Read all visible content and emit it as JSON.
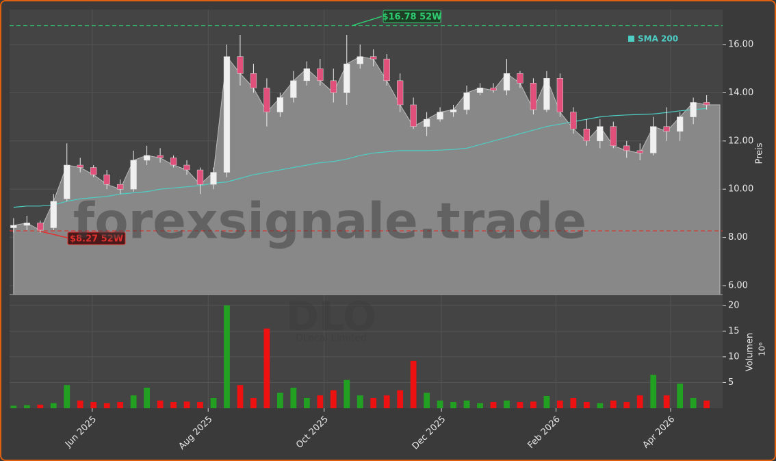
{
  "chart_data": {
    "type": "candlestick",
    "watermark": "forexsignale.trade",
    "ticker": "DLO",
    "company": "DLocal Limited",
    "categories": [
      null,
      null,
      null,
      null,
      null,
      null,
      null,
      null,
      null,
      null,
      null,
      null,
      null,
      null,
      null,
      null,
      null,
      null,
      null,
      null,
      null,
      null,
      null,
      null,
      null,
      null,
      null,
      null,
      null,
      null,
      null,
      null,
      null,
      null,
      null,
      null,
      null,
      null,
      null,
      null,
      null,
      null,
      null,
      null,
      null,
      null,
      null,
      null,
      null,
      null,
      null,
      null,
      null
    ],
    "open": [
      8.4,
      8.5,
      8.6,
      8.4,
      9.6,
      11.0,
      10.9,
      10.6,
      10.2,
      10.0,
      11.2,
      11.4,
      11.3,
      11.0,
      10.8,
      10.2,
      10.7,
      15.5,
      14.8,
      14.2,
      13.2,
      13.8,
      14.5,
      15.0,
      14.5,
      14.0,
      15.2,
      15.5,
      15.4,
      14.5,
      13.5,
      12.6,
      12.9,
      13.2,
      13.3,
      14.0,
      14.2,
      14.1,
      14.8,
      14.4,
      13.3,
      14.6,
      13.2,
      12.5,
      12.0,
      12.6,
      11.8,
      11.6,
      11.5,
      12.6,
      12.4,
      13.0,
      13.6
    ],
    "high": [
      8.8,
      8.9,
      8.7,
      9.8,
      11.9,
      11.3,
      11.0,
      10.8,
      10.4,
      11.6,
      11.8,
      11.7,
      11.4,
      11.2,
      10.9,
      10.9,
      16.0,
      16.4,
      15.2,
      14.6,
      14.0,
      14.9,
      15.3,
      15.4,
      15.0,
      16.4,
      16.0,
      15.8,
      15.6,
      14.8,
      13.8,
      13.2,
      13.4,
      13.5,
      14.3,
      14.4,
      14.4,
      15.4,
      14.9,
      14.6,
      14.9,
      14.8,
      13.4,
      12.9,
      12.9,
      12.8,
      12.0,
      11.9,
      13.0,
      13.4,
      13.2,
      13.8,
      13.9
    ],
    "low": [
      8.2,
      8.3,
      8.2,
      8.3,
      9.5,
      10.7,
      10.5,
      10.0,
      9.8,
      9.9,
      11.0,
      11.1,
      10.9,
      10.6,
      9.8,
      10.0,
      10.5,
      14.3,
      14.0,
      12.6,
      13.0,
      13.6,
      14.3,
      14.3,
      13.6,
      13.5,
      15.0,
      15.1,
      14.3,
      13.2,
      12.5,
      12.2,
      12.8,
      13.0,
      13.1,
      13.9,
      14.0,
      13.9,
      14.2,
      13.1,
      13.2,
      13.0,
      12.3,
      11.8,
      11.7,
      11.7,
      11.3,
      11.2,
      11.4,
      12.0,
      12.0,
      12.7,
      13.3
    ],
    "close": [
      8.5,
      8.6,
      8.3,
      9.5,
      11.0,
      10.9,
      10.6,
      10.2,
      10.0,
      11.2,
      11.4,
      11.3,
      11.0,
      10.8,
      10.2,
      10.7,
      15.5,
      14.8,
      14.2,
      13.2,
      13.8,
      14.5,
      15.0,
      14.5,
      14.0,
      15.2,
      15.5,
      15.4,
      14.5,
      13.5,
      12.6,
      12.9,
      13.2,
      13.3,
      14.0,
      14.2,
      14.1,
      14.8,
      14.4,
      13.3,
      14.6,
      13.2,
      12.5,
      12.0,
      12.6,
      11.8,
      11.6,
      11.5,
      12.6,
      12.4,
      13.0,
      13.6,
      13.5
    ],
    "sma": {
      "name": "SMA 200",
      "color": "#4ecdc4",
      "values": [
        9.25,
        9.3,
        9.3,
        9.35,
        9.5,
        9.6,
        9.65,
        9.7,
        9.8,
        9.85,
        9.9,
        10.0,
        10.05,
        10.1,
        10.15,
        10.25,
        10.3,
        10.45,
        10.6,
        10.7,
        10.8,
        10.9,
        11.0,
        11.1,
        11.15,
        11.25,
        11.4,
        11.5,
        11.55,
        11.6,
        11.6,
        11.6,
        11.62,
        11.65,
        11.7,
        11.85,
        12.0,
        12.15,
        12.3,
        12.45,
        12.6,
        12.7,
        12.8,
        12.9,
        13.0,
        13.05,
        13.08,
        13.1,
        13.12,
        13.18,
        13.25,
        13.3,
        13.35
      ]
    },
    "volume": [
      0.5,
      0.6,
      0.7,
      1.0,
      4.5,
      1.5,
      1.2,
      1.0,
      1.2,
      2.5,
      4.0,
      1.5,
      1.2,
      1.3,
      1.2,
      2.0,
      20,
      4.5,
      2.0,
      15.5,
      3.0,
      4.0,
      2.0,
      2.5,
      3.5,
      5.5,
      2.5,
      2.0,
      2.5,
      3.5,
      9.2,
      3.0,
      1.5,
      1.2,
      1.5,
      1.0,
      1.2,
      1.5,
      1.2,
      1.3,
      2.4,
      1.5,
      2.0,
      1.2,
      1.0,
      1.5,
      1.2,
      2.5,
      6.5,
      2.5,
      4.8,
      2.0,
      1.5
    ],
    "up_color": "#22a022",
    "down_color": "#ee1111",
    "area_color": "#888888",
    "high_52w": {
      "value": 16.78,
      "label": "$16.78 52W",
      "color": "#2ecc71"
    },
    "low_52w": {
      "value": 8.27,
      "label": "$8.27 52W",
      "color": "#e03030"
    },
    "ylabel": "Preis",
    "ylim": [
      5.63,
      17.45
    ],
    "yticks": [
      {
        "value": 6,
        "label": "6.00"
      },
      {
        "value": 8,
        "label": "8.00"
      },
      {
        "value": 10,
        "label": "10.00"
      },
      {
        "value": 12,
        "label": "12.00"
      },
      {
        "value": 14,
        "label": "14.00"
      },
      {
        "value": 16,
        "label": "16.00"
      }
    ],
    "y2label": "Volumen",
    "y2unit": "10⁶",
    "y2lim": [
      0,
      22.1
    ],
    "y2ticks": [
      5,
      10,
      15,
      20
    ],
    "xlim": [
      -0.3,
      53.2
    ],
    "xticks": [
      {
        "value": 5.9,
        "label": "Jun 2025"
      },
      {
        "value": 14.6,
        "label": "Aug 2025"
      },
      {
        "value": 23.3,
        "label": "Oct 2025"
      },
      {
        "value": 32.1,
        "label": "Dec 2025"
      },
      {
        "value": 40.7,
        "label": "Feb 2026"
      },
      {
        "value": 49.3,
        "label": "Apr 2026"
      }
    ],
    "grid": true
  }
}
